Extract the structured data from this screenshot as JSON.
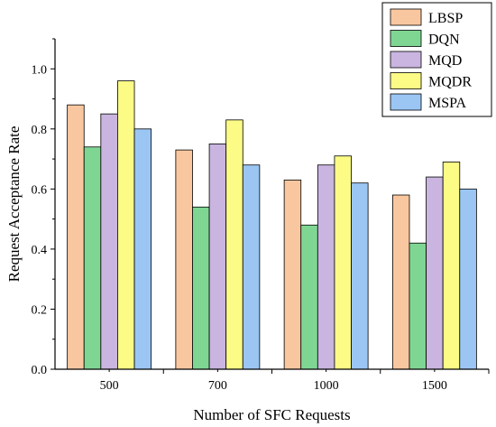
{
  "chart_data": {
    "type": "bar",
    "title": "",
    "xlabel": "Number of SFC Requests",
    "ylabel": "Request Acceptance Rate",
    "categories": [
      "500",
      "700",
      "1000",
      "1500"
    ],
    "ylim": [
      0,
      1.1
    ],
    "yticks": [
      0.0,
      0.2,
      0.4,
      0.6,
      0.8,
      1.0
    ],
    "ytick_labels": [
      "0.0",
      "0.2",
      "0.4",
      "0.6",
      "0.8",
      "1.0"
    ],
    "grid": false,
    "legend_position": "top-right",
    "series": [
      {
        "name": "LBSP",
        "color": "#F9C79F",
        "values": [
          0.88,
          0.73,
          0.63,
          0.58
        ]
      },
      {
        "name": "DQN",
        "color": "#7FD693",
        "values": [
          0.74,
          0.54,
          0.48,
          0.42
        ]
      },
      {
        "name": "MQD",
        "color": "#C9B5DF",
        "values": [
          0.85,
          0.75,
          0.68,
          0.64
        ]
      },
      {
        "name": "MQDR",
        "color": "#FBFB85",
        "values": [
          0.96,
          0.83,
          0.71,
          0.69
        ]
      },
      {
        "name": "MSPA",
        "color": "#9BC6F4",
        "values": [
          0.8,
          0.68,
          0.62,
          0.6
        ]
      }
    ]
  }
}
